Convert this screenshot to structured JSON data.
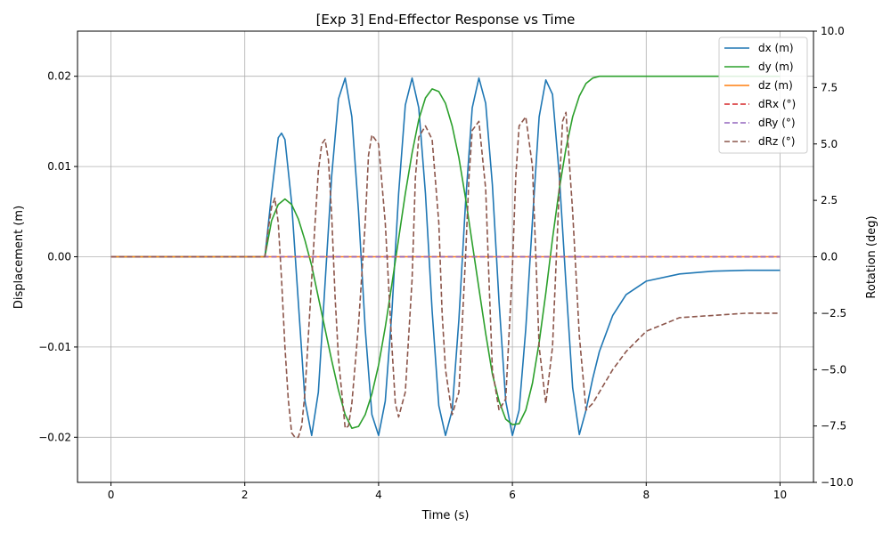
{
  "chart_data": {
    "type": "line",
    "title": "[Exp 3] End-Effector Response vs Time",
    "xlabel": "Time (s)",
    "ylabel": "Displacement (m)",
    "y2label": "Rotation (deg)",
    "xlim": [
      -0.5,
      10.5
    ],
    "ylim": [
      -0.025,
      0.025
    ],
    "y2lim": [
      -10,
      10
    ],
    "xticks": [
      0,
      2,
      4,
      6,
      8,
      10
    ],
    "xtick_labels": [
      "0",
      "2",
      "4",
      "6",
      "8",
      "10"
    ],
    "yticks": [
      -0.02,
      -0.01,
      0.0,
      0.01,
      0.02
    ],
    "ytick_labels": [
      "−0.02",
      "−0.01",
      "0.00",
      "0.01",
      "0.02"
    ],
    "y2ticks": [
      -10,
      -7.5,
      -5,
      -2.5,
      0,
      2.5,
      5,
      7.5,
      10
    ],
    "y2tick_labels": [
      "−10.0",
      "−7.5",
      "−5.0",
      "−2.5",
      "0.0",
      "2.5",
      "5.0",
      "7.5",
      "10.0"
    ],
    "grid": true,
    "legend_position": "top-right",
    "series": [
      {
        "name": "dx (m)",
        "axis": "left",
        "color": "#1f77b4",
        "dash": "solid",
        "x": [
          0,
          2.3,
          2.4,
          2.5,
          2.55,
          2.6,
          2.7,
          2.8,
          2.9,
          3.0,
          3.1,
          3.2,
          3.3,
          3.4,
          3.5,
          3.6,
          3.7,
          3.8,
          3.9,
          4.0,
          4.1,
          4.2,
          4.3,
          4.4,
          4.5,
          4.6,
          4.7,
          4.8,
          4.9,
          5.0,
          5.1,
          5.2,
          5.3,
          5.4,
          5.5,
          5.6,
          5.7,
          5.8,
          5.9,
          6.0,
          6.1,
          6.2,
          6.3,
          6.4,
          6.5,
          6.6,
          6.7,
          6.8,
          6.9,
          7.0,
          7.1,
          7.2,
          7.3,
          7.5,
          7.7,
          8.0,
          8.5,
          9.0,
          9.5,
          10.0
        ],
        "y": [
          0,
          0,
          0.007,
          0.0132,
          0.0137,
          0.013,
          0.006,
          -0.005,
          -0.016,
          -0.0198,
          -0.015,
          -0.003,
          0.009,
          0.0175,
          0.0198,
          0.0155,
          0.005,
          -0.008,
          -0.0175,
          -0.0198,
          -0.016,
          -0.006,
          0.007,
          0.0168,
          0.0198,
          0.0165,
          0.007,
          -0.006,
          -0.0165,
          -0.0198,
          -0.017,
          -0.007,
          0.006,
          0.0165,
          0.0198,
          0.017,
          0.008,
          -0.005,
          -0.016,
          -0.0198,
          -0.017,
          -0.008,
          0.004,
          0.0155,
          0.0196,
          0.018,
          0.009,
          -0.003,
          -0.0145,
          -0.0197,
          -0.017,
          -0.0135,
          -0.0105,
          -0.0065,
          -0.0042,
          -0.0027,
          -0.0019,
          -0.0016,
          -0.0015,
          -0.0015
        ]
      },
      {
        "name": "dy (m)",
        "axis": "left",
        "color": "#2ca02c",
        "dash": "solid",
        "x": [
          0,
          2.3,
          2.4,
          2.5,
          2.6,
          2.7,
          2.8,
          2.9,
          3.0,
          3.1,
          3.2,
          3.3,
          3.4,
          3.5,
          3.6,
          3.7,
          3.8,
          3.9,
          4.0,
          4.1,
          4.2,
          4.3,
          4.4,
          4.5,
          4.6,
          4.7,
          4.8,
          4.9,
          5.0,
          5.1,
          5.2,
          5.3,
          5.4,
          5.5,
          5.6,
          5.7,
          5.8,
          5.9,
          6.0,
          6.1,
          6.2,
          6.3,
          6.4,
          6.5,
          6.6,
          6.7,
          6.8,
          6.9,
          7.0,
          7.1,
          7.2,
          7.3,
          7.35,
          8.0,
          9.0,
          10.0
        ],
        "y": [
          0,
          0,
          0.004,
          0.0058,
          0.0064,
          0.0058,
          0.0042,
          0.0018,
          -0.001,
          -0.0045,
          -0.008,
          -0.0115,
          -0.0148,
          -0.0175,
          -0.019,
          -0.0188,
          -0.0175,
          -0.0152,
          -0.012,
          -0.0078,
          -0.003,
          0.002,
          0.007,
          0.0115,
          0.0152,
          0.0176,
          0.0186,
          0.0183,
          0.017,
          0.0145,
          0.011,
          0.0065,
          0.0015,
          -0.0035,
          -0.0085,
          -0.013,
          -0.016,
          -0.018,
          -0.0186,
          -0.0185,
          -0.017,
          -0.014,
          -0.0095,
          -0.004,
          0.002,
          0.0075,
          0.012,
          0.0155,
          0.0178,
          0.0192,
          0.0198,
          0.02,
          0.02,
          0.02,
          0.02,
          0.02
        ]
      },
      {
        "name": "dz (m)",
        "axis": "left",
        "color": "#ff7f0e",
        "dash": "solid",
        "x": [
          0,
          10
        ],
        "y": [
          0,
          0
        ]
      },
      {
        "name": "dRx (°)",
        "axis": "right",
        "color": "#d62728",
        "dash": "dashed",
        "x": [
          0,
          10
        ],
        "y": [
          0,
          0
        ]
      },
      {
        "name": "dRy (°)",
        "axis": "right",
        "color": "#9467bd",
        "dash": "dashed",
        "x": [
          0,
          10
        ],
        "y": [
          0,
          0
        ]
      },
      {
        "name": "dRz (°)",
        "axis": "right",
        "color": "#8c564b",
        "dash": "dashed",
        "x": [
          0,
          2.3,
          2.35,
          2.4,
          2.45,
          2.5,
          2.55,
          2.6,
          2.65,
          2.7,
          2.75,
          2.8,
          2.85,
          2.9,
          2.95,
          3.0,
          3.05,
          3.1,
          3.15,
          3.2,
          3.25,
          3.3,
          3.35,
          3.4,
          3.5,
          3.55,
          3.6,
          3.7,
          3.8,
          3.85,
          3.9,
          4.0,
          4.1,
          4.2,
          4.25,
          4.3,
          4.4,
          4.5,
          4.55,
          4.6,
          4.7,
          4.8,
          4.9,
          4.95,
          5.0,
          5.1,
          5.2,
          5.3,
          5.35,
          5.4,
          5.5,
          5.6,
          5.65,
          5.7,
          5.8,
          5.9,
          6.0,
          6.05,
          6.1,
          6.2,
          6.3,
          6.35,
          6.4,
          6.5,
          6.6,
          6.7,
          6.75,
          6.8,
          6.9,
          7.0,
          7.1,
          7.2,
          7.3,
          7.5,
          7.7,
          8.0,
          8.5,
          9.0,
          9.5,
          10.0
        ],
        "y": [
          0,
          0,
          1.2,
          2.2,
          2.6,
          1.5,
          -1.0,
          -4.0,
          -6.3,
          -7.8,
          -8.0,
          -8.0,
          -7.5,
          -6.0,
          -3.5,
          -1.0,
          1.5,
          3.8,
          5.0,
          5.2,
          4.3,
          1.8,
          -1.8,
          -4.5,
          -7.6,
          -7.5,
          -6.5,
          -3.0,
          1.5,
          4.5,
          5.4,
          5.0,
          1.5,
          -4.0,
          -6.5,
          -7.1,
          -6.0,
          -1.0,
          3.5,
          5.3,
          5.8,
          5.2,
          1.5,
          -2.5,
          -5.0,
          -7.0,
          -6.0,
          0.0,
          3.5,
          5.6,
          6.0,
          3.0,
          -1.0,
          -5.0,
          -6.8,
          -6.3,
          -0.5,
          3.5,
          5.8,
          6.2,
          4.0,
          0.0,
          -4.0,
          -6.5,
          -4.0,
          3.0,
          6.0,
          6.4,
          2.0,
          -3.5,
          -6.8,
          -6.5,
          -6.0,
          -5.0,
          -4.2,
          -3.3,
          -2.7,
          -2.6,
          -2.5,
          -2.5
        ]
      }
    ]
  }
}
